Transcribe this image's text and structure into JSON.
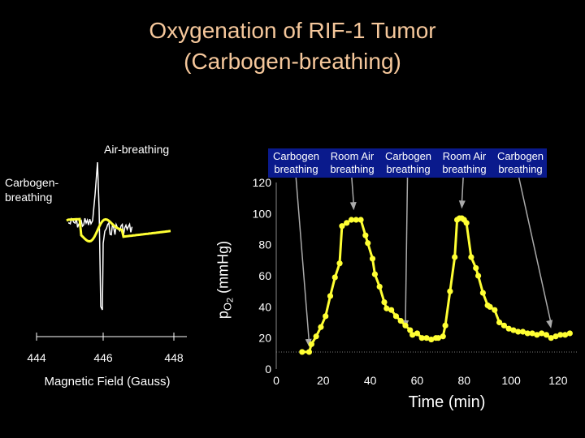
{
  "title": {
    "line1": "Oxygenation of RIF-1 Tumor",
    "line2": "(Carbogen-breathing)"
  },
  "epr_panel": {
    "air_label": "Air-breathing",
    "carbogen_label": "Carbogen-breathing",
    "xlabel": "Magnetic Field (Gauss)",
    "ticks": [
      "444",
      "446",
      "448"
    ],
    "colors": {
      "air": "#ffffff",
      "carbogen": "#ffff33"
    }
  },
  "legend": {
    "items": [
      {
        "line1": "Carbogen",
        "line2": "breathing"
      },
      {
        "line1": "Room Air",
        "line2": "breathing"
      },
      {
        "line1": "Carbogen",
        "line2": "breathing"
      },
      {
        "line1": "Room Air",
        "line2": "breathing"
      },
      {
        "line1": "Carbogen",
        "line2": "breathing"
      }
    ],
    "background": "#0a1a8c"
  },
  "chart_data": {
    "type": "line",
    "title": "Oxygenation of RIF-1 Tumor (Carbogen-breathing)",
    "xlabel": "Time (min)",
    "ylabel": "pO2 (mmHg)",
    "xlim": [
      0,
      128
    ],
    "ylim": [
      0,
      120
    ],
    "xticks": [
      0,
      20,
      40,
      60,
      80,
      100,
      120
    ],
    "yticks": [
      0,
      20,
      40,
      60,
      80,
      100,
      120
    ],
    "xtick_labels": [
      "0",
      "20",
      "40",
      "60",
      "80",
      "100",
      "120"
    ],
    "ytick_labels": [
      "0",
      "20",
      "40",
      "60",
      "80",
      "100",
      "120"
    ],
    "series_color": "#ffff33",
    "marker": "circle",
    "series": [
      {
        "name": "",
        "x": [
          11,
          14,
          15,
          17,
          19,
          21,
          23,
          25,
          27,
          28,
          30,
          32,
          34,
          36,
          38,
          39,
          41,
          42,
          44,
          46,
          47,
          49,
          51,
          53,
          55,
          57,
          58,
          60,
          62,
          64,
          66,
          68,
          69,
          71,
          72,
          74,
          76,
          77,
          78,
          79,
          80,
          81,
          83,
          85,
          86,
          88,
          90,
          91,
          93,
          95,
          97,
          99,
          101,
          103,
          105,
          107,
          109,
          111,
          113,
          115,
          117,
          119,
          121,
          123,
          125
        ],
        "y": [
          11,
          11,
          16,
          21,
          27,
          34,
          47,
          59,
          68,
          92,
          94,
          96,
          96,
          96,
          86,
          81,
          71,
          61,
          53,
          43,
          39,
          38,
          34,
          31,
          28,
          25,
          22,
          23,
          20,
          20,
          19,
          20,
          20,
          21,
          28,
          50,
          72,
          96,
          97,
          97,
          96,
          94,
          72,
          65,
          60,
          49,
          41,
          40,
          38,
          30,
          28,
          26,
          25,
          24,
          24,
          23,
          23,
          22,
          23,
          22,
          20,
          21,
          22,
          22,
          23
        ]
      }
    ],
    "annotations": [
      {
        "x": 14,
        "y": 11,
        "from_legend": 0
      },
      {
        "x": 33,
        "y": 99,
        "from_legend": 1
      },
      {
        "x": 55,
        "y": 23,
        "from_legend": 2
      },
      {
        "x": 79,
        "y": 100,
        "from_legend": 3
      },
      {
        "x": 117,
        "y": 23,
        "from_legend": 4
      }
    ]
  }
}
